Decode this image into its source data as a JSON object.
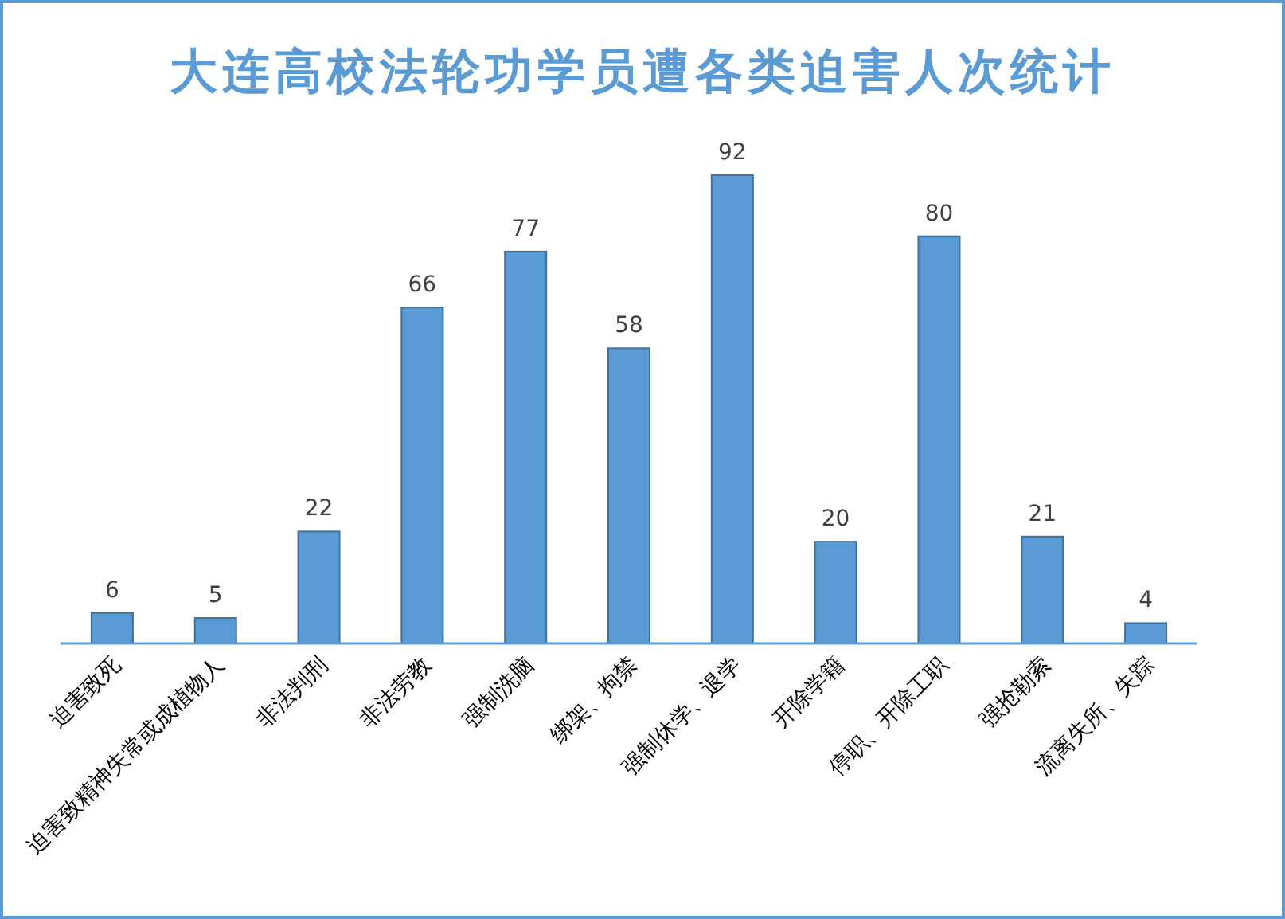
{
  "chart_data": {
    "type": "bar",
    "title": "大连高校法轮功学员遭各类迫害人次统计",
    "categories": [
      "迫害致死",
      "迫害致精神失常或成植物人",
      "非法判刑",
      "非法劳教",
      "强制洗脑",
      "绑架、拘禁",
      "强制休学、退学",
      "开除学籍",
      "停职、开除工职",
      "强抢勒索",
      "流离失所、失踪"
    ],
    "values": [
      6,
      5,
      22,
      66,
      77,
      58,
      92,
      20,
      80,
      21,
      4
    ],
    "color": "#5b9bd5",
    "data_labels": true
  }
}
